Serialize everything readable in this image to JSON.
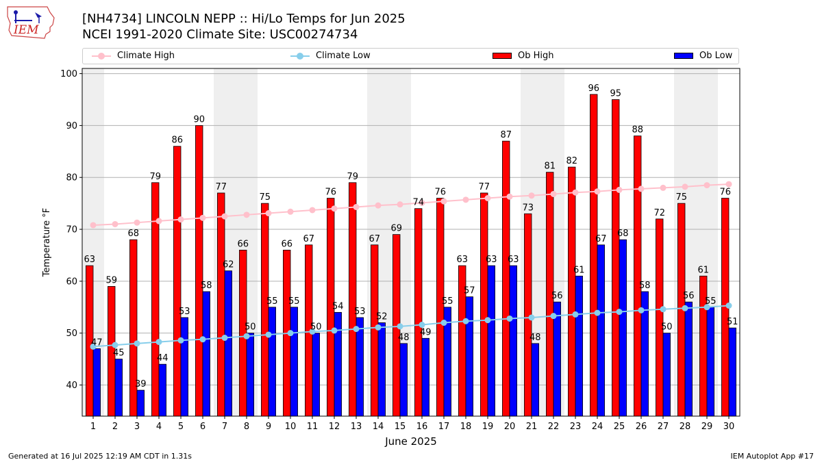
{
  "header": {
    "title_line1": "[NH4734] LINCOLN NEPP :: Hi/Lo Temps for Jun 2025",
    "title_line2": "NCEI 1991-2020 Climate Site: USC00274734"
  },
  "logo": {
    "text": "IEM",
    "icon": "iem-iowa-logo-icon"
  },
  "legend": {
    "items": [
      {
        "label": "Climate High",
        "kind": "line",
        "color": "#ffc0cb"
      },
      {
        "label": "Climate Low",
        "kind": "line",
        "color": "#87ceeb"
      },
      {
        "label": "Ob High",
        "kind": "bar",
        "color": "#ff0000"
      },
      {
        "label": "Ob Low",
        "kind": "bar",
        "color": "#0000ff"
      }
    ]
  },
  "footer": {
    "left": "Generated at 16 Jul 2025 12:19 AM CDT in 1.31s",
    "right": "IEM Autoplot App #17"
  },
  "chart_data": {
    "type": "bar",
    "xlabel": "June 2025",
    "ylabel": "Temperature °F",
    "ylim": [
      34,
      101
    ],
    "yticks": [
      40,
      50,
      60,
      70,
      80,
      90,
      100
    ],
    "grid": true,
    "legend_position": "top",
    "categories": [
      1,
      2,
      3,
      4,
      5,
      6,
      7,
      8,
      9,
      10,
      11,
      12,
      13,
      14,
      15,
      16,
      17,
      18,
      19,
      20,
      21,
      22,
      23,
      24,
      25,
      26,
      27,
      28,
      29,
      30
    ],
    "weekend_shading_days": [
      [
        1,
        1
      ],
      [
        7,
        8
      ],
      [
        14,
        15
      ],
      [
        21,
        22
      ],
      [
        28,
        29
      ]
    ],
    "series": [
      {
        "name": "Ob High",
        "kind": "bar",
        "color": "#ff0000",
        "values": [
          63,
          59,
          68,
          79,
          86,
          90,
          77,
          66,
          75,
          66,
          67,
          76,
          79,
          67,
          69,
          74,
          76,
          63,
          77,
          87,
          73,
          81,
          82,
          96,
          95,
          88,
          72,
          75,
          61,
          76
        ]
      },
      {
        "name": "Ob Low",
        "kind": "bar",
        "color": "#0000ff",
        "values": [
          47,
          45,
          39,
          44,
          53,
          58,
          62,
          50,
          55,
          55,
          50,
          54,
          53,
          52,
          48,
          49,
          55,
          57,
          63,
          63,
          48,
          56,
          61,
          67,
          68,
          58,
          50,
          56,
          55,
          51
        ]
      },
      {
        "name": "Climate High",
        "kind": "line",
        "color": "#ffc0cb",
        "values": [
          70.8,
          71.0,
          71.3,
          71.6,
          71.9,
          72.2,
          72.5,
          72.8,
          73.1,
          73.4,
          73.7,
          74.0,
          74.3,
          74.6,
          74.8,
          75.1,
          75.4,
          75.7,
          76.0,
          76.3,
          76.5,
          76.8,
          77.1,
          77.3,
          77.6,
          77.8,
          78.0,
          78.2,
          78.5,
          78.7
        ]
      },
      {
        "name": "Climate Low",
        "kind": "line",
        "color": "#87ceeb",
        "values": [
          47.4,
          47.7,
          48.0,
          48.3,
          48.6,
          48.8,
          49.1,
          49.4,
          49.7,
          50.0,
          50.3,
          50.5,
          50.8,
          51.1,
          51.3,
          51.6,
          52.0,
          52.3,
          52.5,
          52.8,
          53.0,
          53.3,
          53.6,
          53.9,
          54.1,
          54.4,
          54.6,
          54.8,
          55.0,
          55.3
        ]
      }
    ]
  }
}
